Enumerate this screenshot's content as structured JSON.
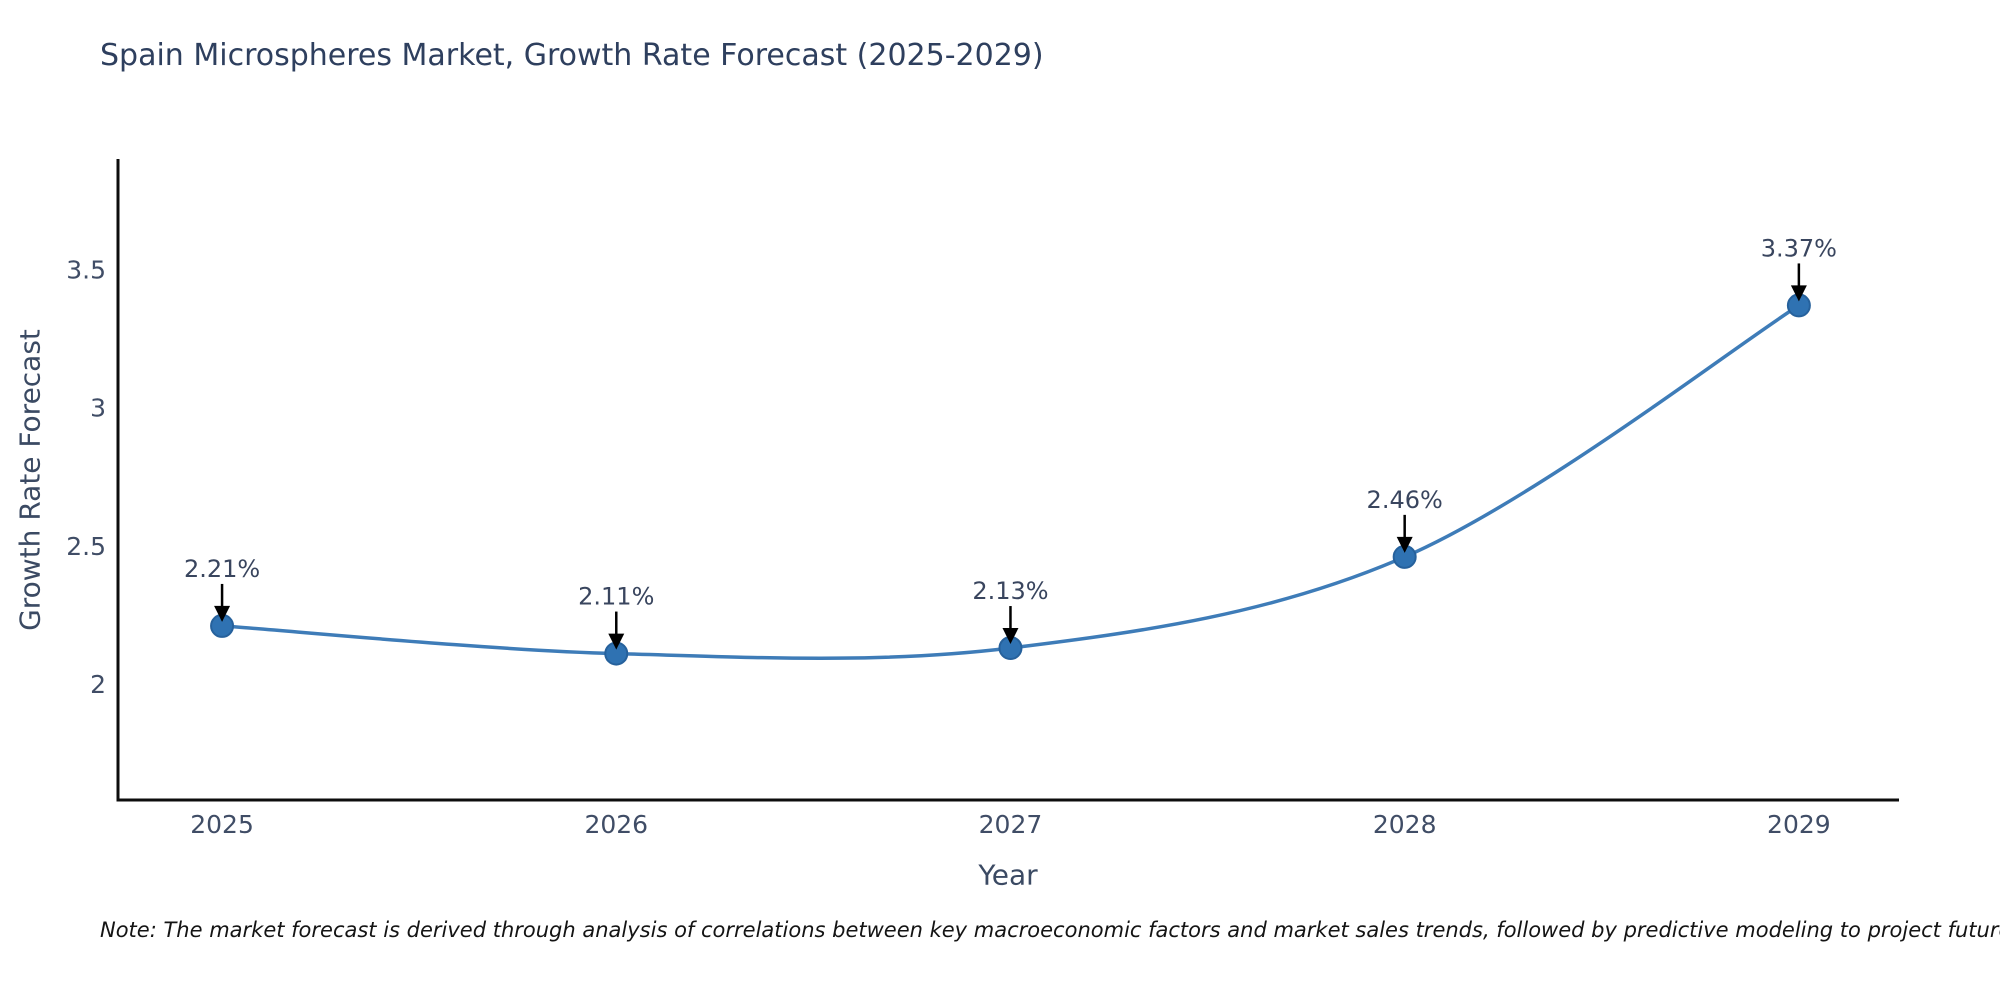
{
  "page": {
    "background": "#ffffff"
  },
  "header": {
    "title": "Spain Microspheres Market, Growth Rate Forecast (2025-2029)"
  },
  "note": {
    "text": "Note: The market forecast is derived through analysis of correlations between key macroeconomic factors and market sales trends, followed by predictive modeling to project future sales"
  },
  "colors": {
    "background": "#ffffff",
    "title_text": "#2e3f5e",
    "axis_text": "#404d66",
    "spine": "#0d0d0d",
    "line": "#3e7cb8",
    "marker_fill": "#2f72b2",
    "marker_edge": "#26619c",
    "annotation_text": "#39455e",
    "annotation_arrow": "#000000"
  },
  "chart_data": {
    "type": "line",
    "title": "Spain Microspheres Market, Growth Rate Forecast (2025-2029)",
    "xlabel": "Year",
    "ylabel": "Growth Rate Forecast",
    "categories": [
      "2025",
      "2026",
      "2027",
      "2028",
      "2029"
    ],
    "series": [
      {
        "name": "Growth Rate Forecast",
        "values": [
          2.21,
          2.11,
          2.13,
          2.46,
          3.37
        ]
      }
    ],
    "point_labels": [
      "2.21%",
      "2.11%",
      "2.13%",
      "2.46%",
      "3.37%"
    ],
    "ytick_values": [
      2,
      2.5,
      3,
      3.5
    ],
    "ytick_labels": [
      "2",
      "2.5",
      "3",
      "3.5"
    ],
    "ylim": [
      1.58,
      3.9
    ],
    "xlim": [
      -0.264,
      4.254
    ],
    "grid": false,
    "legend": false,
    "line_smooth": true
  }
}
